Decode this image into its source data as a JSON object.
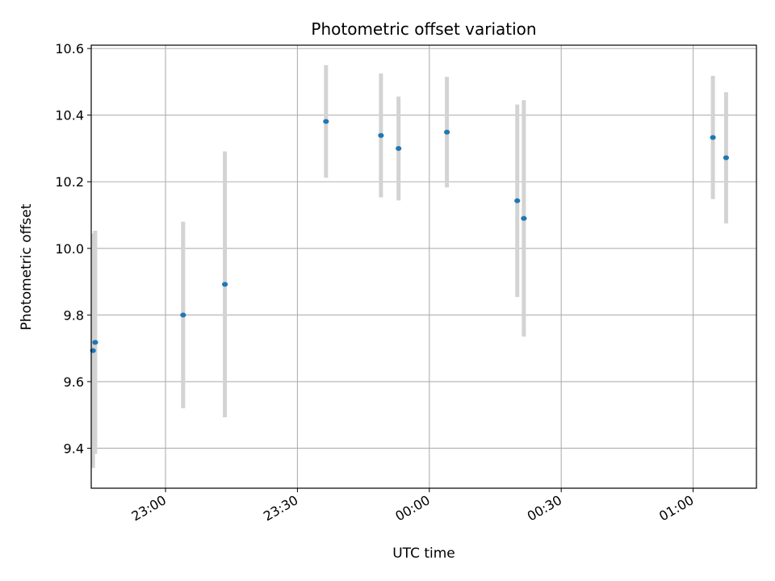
{
  "chart_data": {
    "type": "scatter",
    "title": "Photometric offset variation",
    "xlabel": "UTC time",
    "ylabel": "Photometric offset",
    "x_ticks": [
      "23:00",
      "23:30",
      "00:00",
      "00:30",
      "01:00"
    ],
    "y_ticks": [
      "9.4",
      "9.6",
      "9.8",
      "10.0",
      "10.2",
      "10.4",
      "10.6"
    ],
    "x_range_minutes_from_first_tick": [
      -16.9,
      134.4
    ],
    "ylim": [
      9.28,
      10.61
    ],
    "grid": true,
    "marker_color": "#1f77b4",
    "errorbar_color": "#d3d3d3",
    "points": [
      {
        "time": "22:43:30",
        "y": 9.693,
        "err": 0.352
      },
      {
        "time": "22:44:00",
        "y": 9.718,
        "err": 0.335
      },
      {
        "time": "23:04:00",
        "y": 9.8,
        "err": 0.28
      },
      {
        "time": "23:13:30",
        "y": 9.892,
        "err": 0.399
      },
      {
        "time": "23:36:30",
        "y": 10.381,
        "err": 0.169
      },
      {
        "time": "23:49:00",
        "y": 10.339,
        "err": 0.186
      },
      {
        "time": "23:53:00",
        "y": 10.3,
        "err": 0.156
      },
      {
        "time": "00:04:00",
        "y": 10.349,
        "err": 0.166
      },
      {
        "time": "00:20:00",
        "y": 10.143,
        "err": 0.289
      },
      {
        "time": "00:21:30",
        "y": 10.09,
        "err": 0.355
      },
      {
        "time": "01:04:30",
        "y": 10.333,
        "err": 0.185
      },
      {
        "time": "01:07:30",
        "y": 10.272,
        "err": 0.197
      }
    ]
  }
}
